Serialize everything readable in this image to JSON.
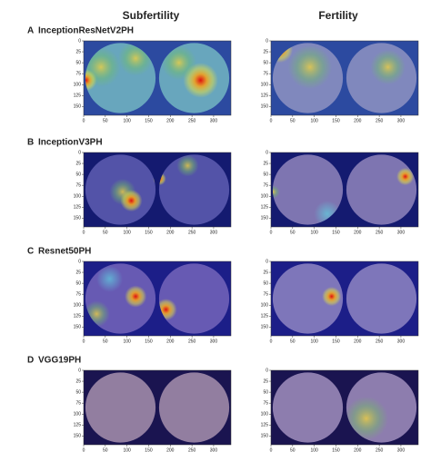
{
  "columns": [
    "Subfertility",
    "Fertility"
  ],
  "panels": [
    {
      "letter": "A",
      "model": "InceptionResNetV2PH"
    },
    {
      "letter": "B",
      "model": "InceptionV3PH"
    },
    {
      "letter": "C",
      "model": "Resnet50PH"
    },
    {
      "letter": "D",
      "model": "VGG19PH"
    }
  ],
  "axes": {
    "xlim": [
      0,
      340
    ],
    "ylim": [
      0,
      170
    ],
    "xticks": [
      0,
      50,
      100,
      150,
      200,
      250,
      300
    ],
    "yticks": [
      0,
      25,
      50,
      75,
      100,
      125,
      150
    ]
  }
}
